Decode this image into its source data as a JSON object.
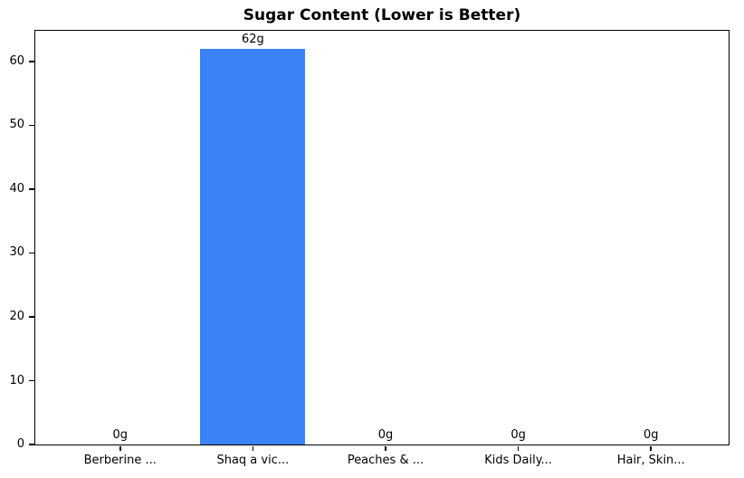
{
  "chart_data": {
    "type": "bar",
    "title": "Sugar Content (Lower is Better)",
    "categories": [
      "Berberine ...",
      "Shaq a vic...",
      "Peaches & ...",
      "Kids Daily...",
      "Hair, Skin..."
    ],
    "values": [
      0,
      62,
      0,
      0,
      0
    ],
    "value_labels": [
      "0g",
      "62g",
      "0g",
      "0g",
      "0g"
    ],
    "unit": "g",
    "xlabel": "",
    "ylabel": "",
    "ylim": [
      0,
      65.1
    ],
    "yticks": [
      0,
      10,
      20,
      30,
      40,
      50,
      60
    ],
    "grid": false,
    "legend": "none",
    "bar_color": "#3b82f6",
    "axis_color": "#000000",
    "text_color": "#000000",
    "background_color": "#ffffff"
  }
}
